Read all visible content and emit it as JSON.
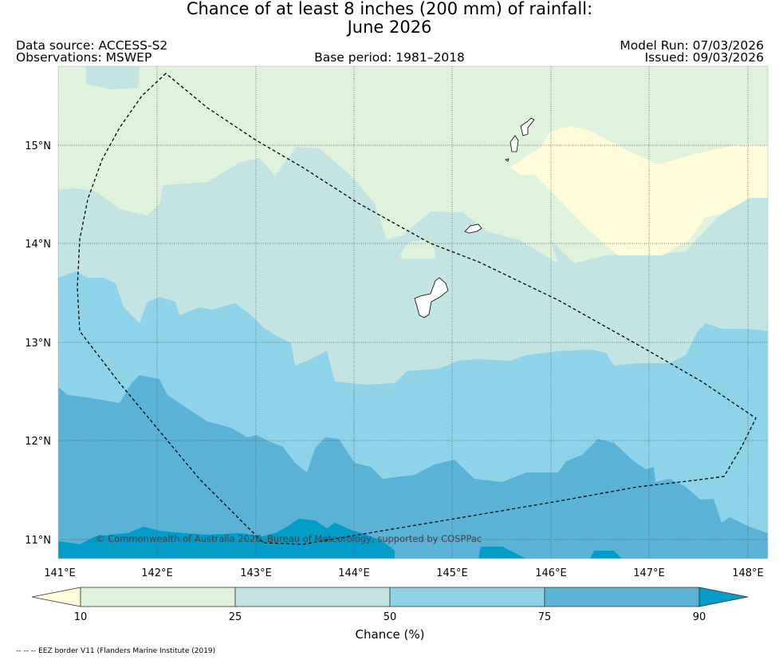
{
  "title": {
    "line1": "Chance of at least 8 inches (200  mm) of rainfall:",
    "line2": "June 2026"
  },
  "header": {
    "data_source": "Data source: ACCESS-S2",
    "observations": "Observations: MSWEP",
    "base_period": "Base period: 1981–2018",
    "model_run": "Model Run: 07/03/2026",
    "issued": "Issued: 09/03/2026"
  },
  "map": {
    "x_ticks": [
      "141°E",
      "142°E",
      "143°E",
      "144°E",
      "145°E",
      "146°E",
      "147°E",
      "148°E"
    ],
    "y_ticks": [
      "15°N",
      "14°N",
      "13°N",
      "12°N",
      "11°N"
    ],
    "copyright": "© Commonwealth of Australia 2026, Bureau of Meteorology, supported by COSPPac"
  },
  "colorbar": {
    "ticks": [
      "10",
      "25",
      "50",
      "75",
      "90"
    ],
    "label": "Chance (%)",
    "colors": [
      "#fefbd8",
      "#dff3dc",
      "#c2e4e3",
      "#8fd3e9",
      "#5ab2d4",
      "#009dc9"
    ]
  },
  "footnote": "-- -- -- EEZ border V11 (Flanders Marine Institute (2019)"
}
